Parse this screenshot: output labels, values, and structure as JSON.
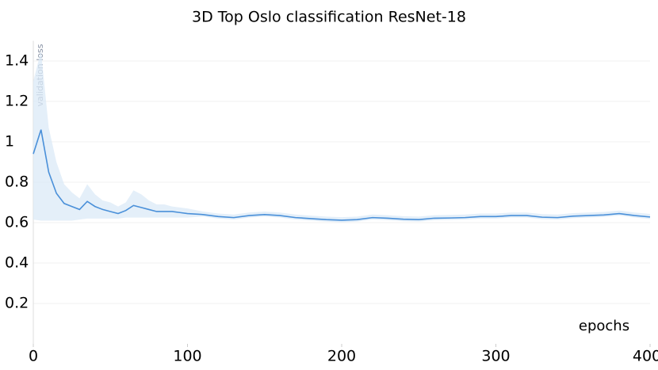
{
  "chart_data": {
    "type": "line",
    "title": "3D Top Oslo classification ResNet-18",
    "ylabel": "validation loss",
    "xlabel": "epochs",
    "x": [
      0,
      5,
      10,
      15,
      20,
      25,
      30,
      35,
      40,
      45,
      50,
      55,
      60,
      65,
      70,
      75,
      80,
      85,
      90,
      95,
      100,
      110,
      120,
      130,
      140,
      150,
      160,
      170,
      180,
      190,
      200,
      210,
      220,
      230,
      240,
      250,
      260,
      270,
      280,
      290,
      300,
      310,
      320,
      330,
      340,
      350,
      360,
      370,
      380,
      390,
      400
    ],
    "series": [
      {
        "color": "#4a90d9",
        "values": [
          0.94,
          1.06,
          0.85,
          0.745,
          0.695,
          0.68,
          0.665,
          0.705,
          0.68,
          0.665,
          0.655,
          0.645,
          0.66,
          0.685,
          0.675,
          0.665,
          0.655,
          0.655,
          0.655,
          0.65,
          0.645,
          0.64,
          0.63,
          0.625,
          0.635,
          0.64,
          0.635,
          0.625,
          0.62,
          0.615,
          0.612,
          0.615,
          0.625,
          0.622,
          0.617,
          0.615,
          0.622,
          0.623,
          0.625,
          0.63,
          0.63,
          0.635,
          0.635,
          0.627,
          0.625,
          0.632,
          0.635,
          0.638,
          0.645,
          0.635,
          0.628
        ]
      }
    ],
    "band": {
      "color": "#dbe9f7",
      "upper": [
        1.3,
        1.45,
        1.07,
        0.9,
        0.79,
        0.75,
        0.72,
        0.79,
        0.74,
        0.71,
        0.7,
        0.68,
        0.7,
        0.76,
        0.74,
        0.71,
        0.69,
        0.69,
        0.68,
        0.675,
        0.67,
        0.655,
        0.645,
        0.64,
        0.65,
        0.655,
        0.65,
        0.64,
        0.635,
        0.63,
        0.627,
        0.63,
        0.64,
        0.637,
        0.632,
        0.63,
        0.637,
        0.638,
        0.64,
        0.645,
        0.645,
        0.65,
        0.65,
        0.642,
        0.64,
        0.647,
        0.65,
        0.653,
        0.66,
        0.65,
        0.643
      ],
      "lower": [
        0.615,
        0.61,
        0.61,
        0.61,
        0.61,
        0.61,
        0.615,
        0.62,
        0.62,
        0.62,
        0.62,
        0.62,
        0.625,
        0.625,
        0.625,
        0.625,
        0.625,
        0.625,
        0.625,
        0.625,
        0.625,
        0.63,
        0.62,
        0.615,
        0.625,
        0.63,
        0.625,
        0.615,
        0.61,
        0.605,
        0.602,
        0.605,
        0.615,
        0.612,
        0.607,
        0.605,
        0.612,
        0.613,
        0.615,
        0.62,
        0.62,
        0.625,
        0.625,
        0.617,
        0.615,
        0.622,
        0.625,
        0.628,
        0.635,
        0.625,
        0.618
      ]
    },
    "xlim": [
      0,
      400
    ],
    "ylim": [
      0,
      1.5
    ],
    "xticks": [
      0,
      100,
      200,
      300,
      400
    ],
    "yticks": [
      0.2,
      0.4,
      0.6,
      0.8,
      1.0,
      1.2,
      1.4
    ],
    "grid": true
  }
}
